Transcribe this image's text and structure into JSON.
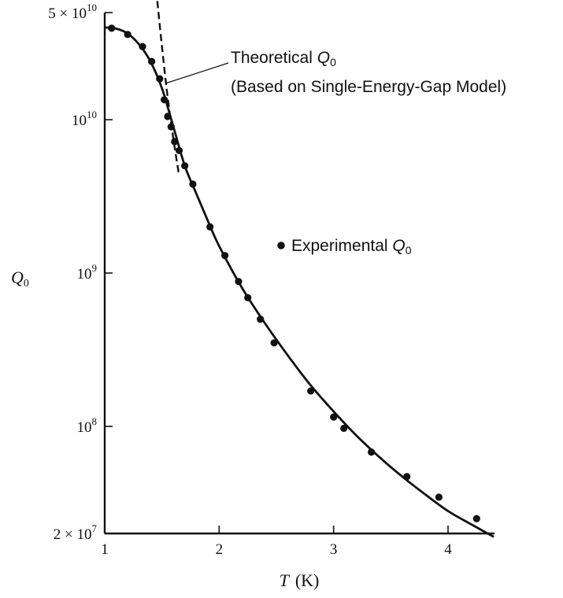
{
  "chart_data": {
    "type": "scatter",
    "title": "",
    "xlabel": {
      "symbol": "T",
      "unit": "(K)"
    },
    "ylabel": {
      "symbol": "Q",
      "subscript": "0"
    },
    "x_scale": "linear",
    "y_scale": "log",
    "xlim": [
      1,
      4.4
    ],
    "ylim": [
      20000000,
      50000000000
    ],
    "grid": false,
    "x_ticks": [
      {
        "value": 1,
        "label": "1"
      },
      {
        "value": 2,
        "label": "2"
      },
      {
        "value": 3,
        "label": "3"
      },
      {
        "value": 4,
        "label": "4"
      }
    ],
    "y_ticks": [
      {
        "value": 50000000000,
        "mantissa": "5 × 10",
        "exp": "10"
      },
      {
        "value": 10000000000,
        "mantissa": "10",
        "exp": "10"
      },
      {
        "value": 1000000000,
        "mantissa": "10",
        "exp": "9"
      },
      {
        "value": 100000000,
        "mantissa": "10",
        "exp": "8"
      },
      {
        "value": 20000000,
        "mantissa": "2 × 10",
        "exp": "7"
      }
    ],
    "series": [
      {
        "name": "Experimental Q0",
        "legend_text": "Experimental ",
        "legend_symbol": "Q",
        "legend_sub": "0",
        "kind": "points",
        "x": [
          1.06,
          1.2,
          1.33,
          1.41,
          1.48,
          1.52,
          1.55,
          1.58,
          1.61,
          1.65,
          1.7,
          1.77,
          1.92,
          2.05,
          2.17,
          2.25,
          2.36,
          2.48,
          2.8,
          3.0,
          3.09,
          3.33,
          3.64,
          3.92,
          4.25
        ],
        "y": [
          39500000000,
          36000000000,
          30000000000,
          24000000000,
          18500000000,
          13500000000,
          10500000000,
          9000000000,
          7200000000,
          6300000000,
          5000000000,
          3800000000,
          2000000000,
          1300000000,
          880000000,
          690000000,
          500000000,
          350000000,
          170000000,
          115000000,
          97000000,
          68000000,
          47000000,
          34500000,
          25000000
        ]
      },
      {
        "name": "Experimental fit",
        "kind": "line-solid",
        "x": [
          1.0,
          1.1,
          1.2,
          1.3,
          1.4,
          1.5,
          1.6,
          1.7,
          1.8,
          1.9,
          2.0,
          2.2,
          2.4,
          2.6,
          2.8,
          3.0,
          3.2,
          3.4,
          3.6,
          3.8,
          4.0,
          4.2,
          4.4
        ],
        "y": [
          40000000000,
          39300000000,
          36500000000,
          31000000000,
          24000000000,
          16000000000,
          9000000000,
          5000000000,
          3300000000,
          2200000000,
          1500000000,
          800000000,
          470000000,
          290000000,
          185000000,
          125000000,
          87000000,
          63000000,
          47000000,
          36000000,
          28000000,
          23000000,
          19000000
        ]
      },
      {
        "name": "Theoretical Q0",
        "legend_text": "Theoretical ",
        "legend_symbol": "Q",
        "legend_sub": "0",
        "legend_line2": "(Based on Single-Energy-Gap Model)",
        "kind": "line-dashed",
        "x": [
          1.45,
          1.5,
          1.55,
          1.6,
          1.65
        ],
        "y": [
          70000000000,
          30000000000,
          14000000000,
          7500000000,
          4300000000
        ]
      }
    ]
  }
}
